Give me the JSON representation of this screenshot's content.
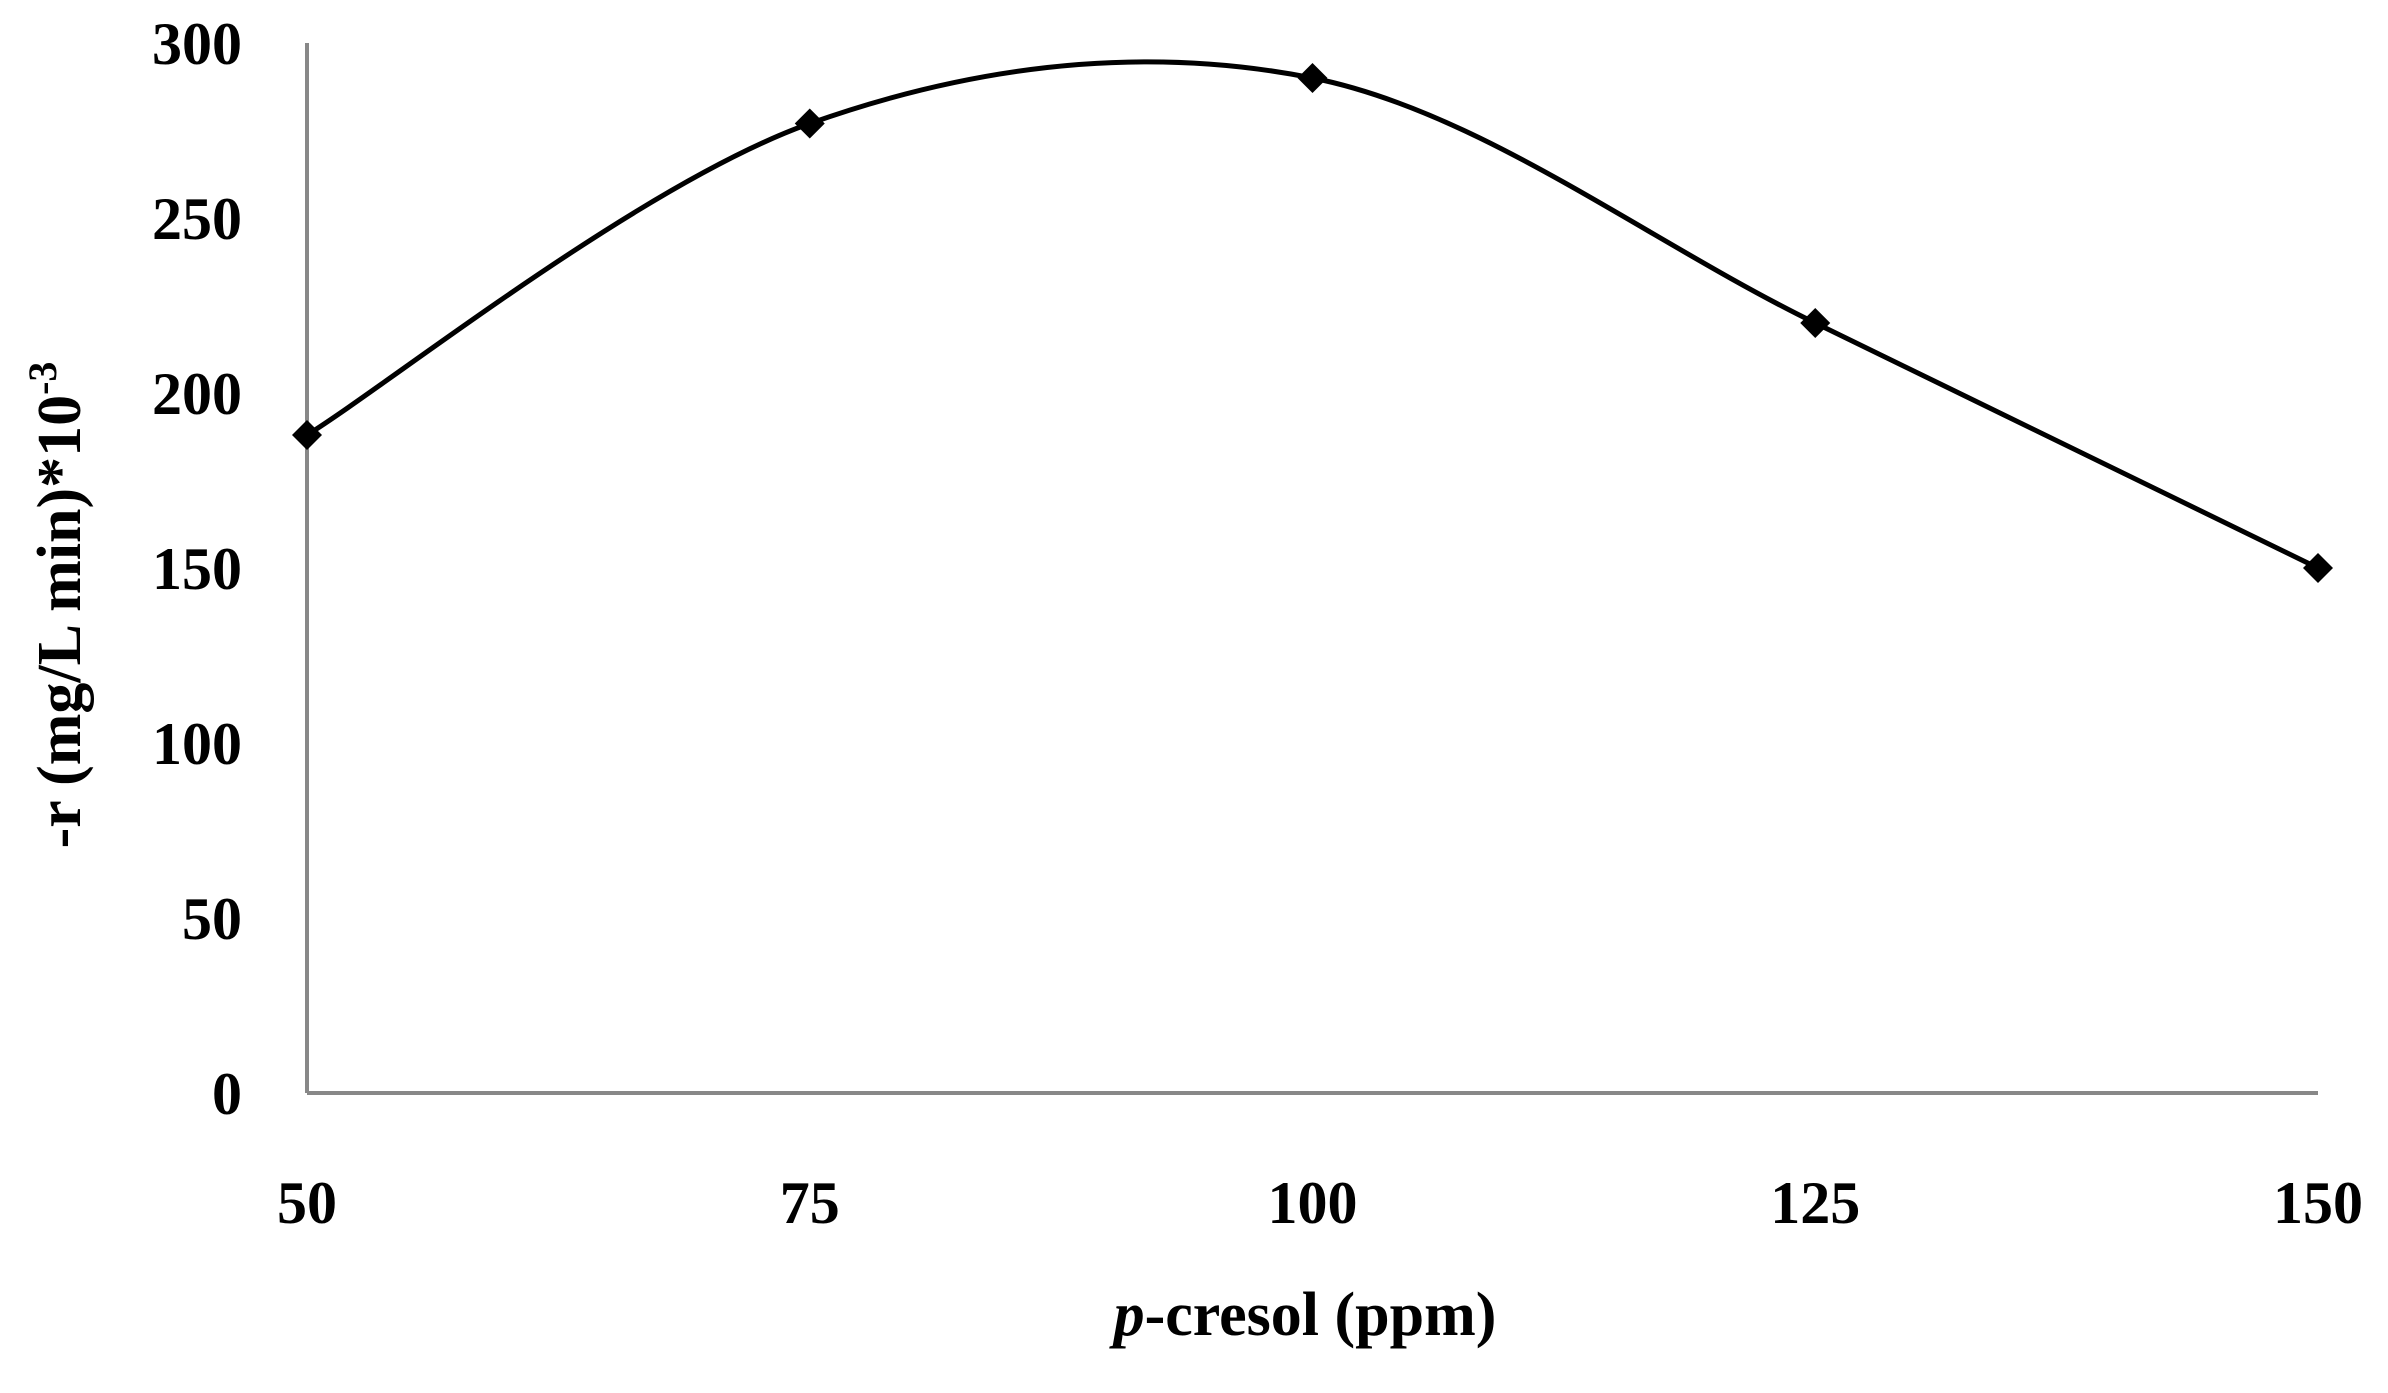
{
  "chart_data": {
    "type": "line",
    "title": "",
    "xlabel_prefix": "p",
    "xlabel_suffix": "-cresol (ppm)",
    "ylabel_main": "-r (mg/L min)*10",
    "ylabel_sup": "-3",
    "x": [
      50,
      75,
      100,
      125,
      150
    ],
    "series": [
      {
        "values": [
          188,
          277,
          290,
          220,
          150
        ]
      }
    ],
    "xticks": [
      "50",
      "75",
      "100",
      "125",
      "150"
    ],
    "yticks": [
      "0",
      "50",
      "100",
      "150",
      "200",
      "250",
      "300"
    ],
    "xlim": [
      50,
      150
    ],
    "ylim": [
      0,
      300
    ],
    "grid": false,
    "legend": "none",
    "line_style": "smoothed",
    "marker": "diamond",
    "line_color": "#000000",
    "axis_color": "#888888"
  }
}
